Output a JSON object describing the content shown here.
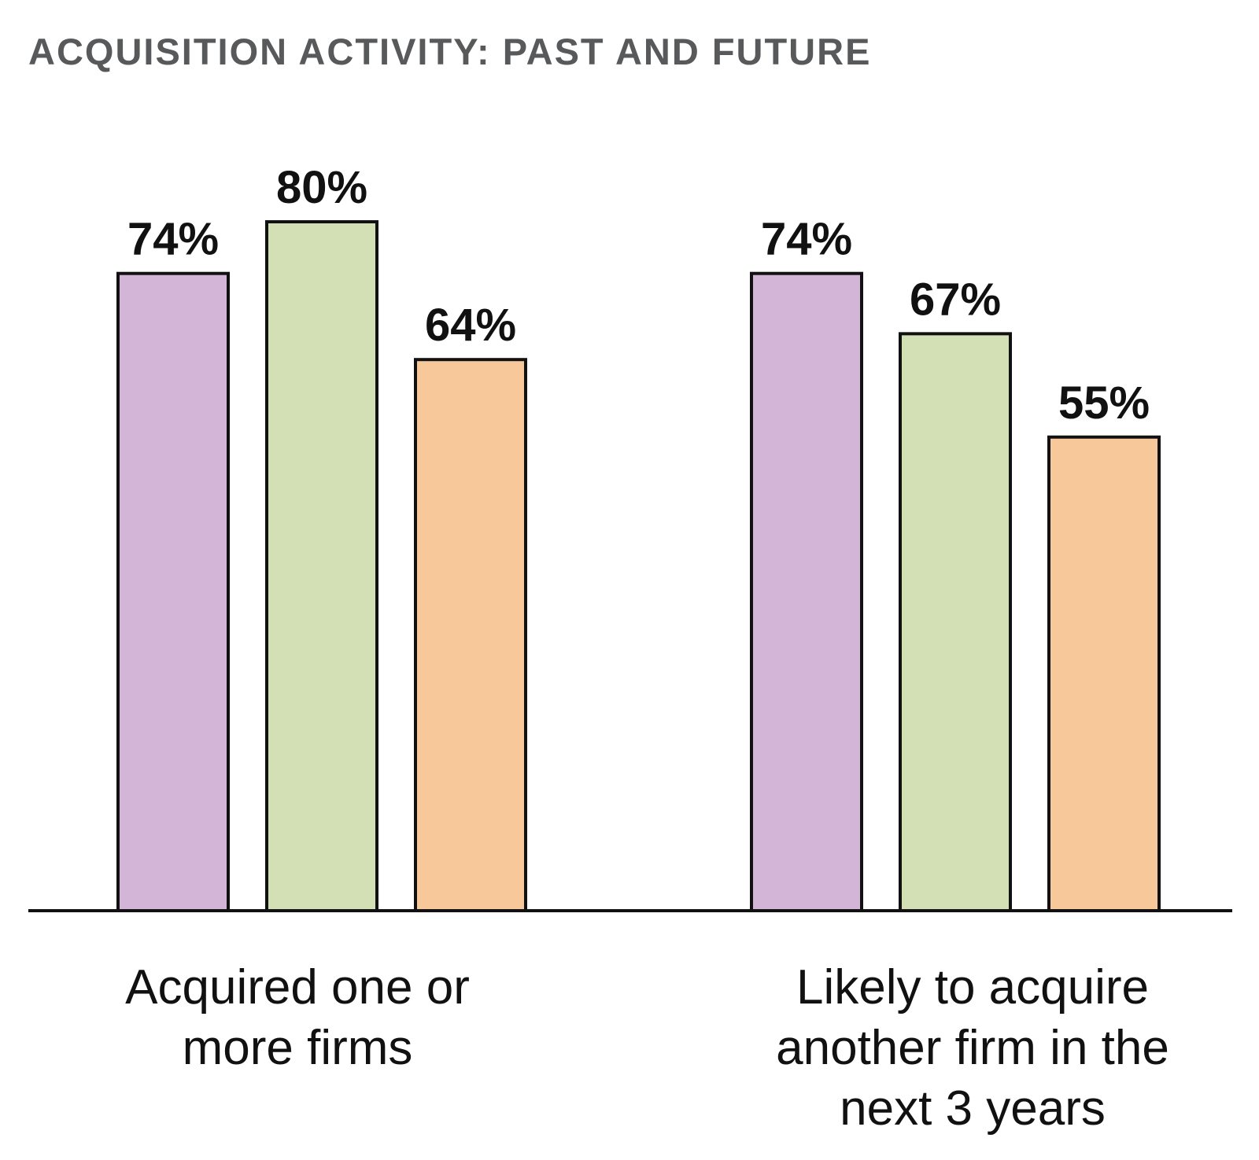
{
  "chart_data": {
    "type": "bar",
    "title": "ACQUISITION ACTIVITY: PAST AND FUTURE",
    "categories": [
      [
        "Acquired one or",
        "more firms"
      ],
      [
        "Likely to acquire",
        "another firm in the",
        "next 3 years"
      ]
    ],
    "series": [
      {
        "values": [
          74,
          74
        ],
        "color": "#d3b5d7"
      },
      {
        "values": [
          80,
          67
        ],
        "color": "#d3e0b6"
      },
      {
        "values": [
          64,
          55
        ],
        "color": "#f7c899"
      }
    ],
    "value_labels": [
      [
        "74%",
        "74%"
      ],
      [
        "80%",
        "67%"
      ],
      [
        "64%",
        "55%"
      ]
    ],
    "ylim": [
      0,
      100
    ],
    "grid": false,
    "legend": "none",
    "bar_stroke_color": "#111111"
  }
}
